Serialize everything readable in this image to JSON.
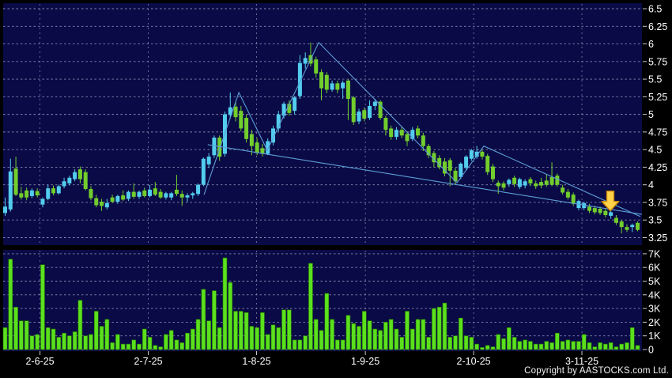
{
  "meta": {
    "copyright": "Copyright by AASTOCKS.com Ltd."
  },
  "colors": {
    "frame": "#000000",
    "panel_bg": "#0A0A46",
    "grid": "#9C9EC4",
    "axis_tick": "#C8C9DC",
    "text": "#FFFFFF",
    "up": "#53CDEE",
    "down": "#72CE2C",
    "volume": "#5BE01E",
    "volume_edge": "#267A00",
    "overlay_line": "#5C9FD6",
    "arrow_fill": "#FFD24A",
    "arrow_edge": "#C8860A"
  },
  "chart_data": {
    "type": "candlestick",
    "panels": [
      "price",
      "volume"
    ],
    "grid": "dashed",
    "legend": "none",
    "price_axis": {
      "side": "right",
      "min": 3.25,
      "max": 6.5,
      "step": 0.25,
      "ticks": [
        "6.5",
        "6.25",
        "6",
        "5.75",
        "5.5",
        "5.25",
        "5",
        "4.75",
        "4.5",
        "4.25",
        "4",
        "3.75",
        "3.5",
        "3.25"
      ]
    },
    "volume_axis": {
      "side": "right",
      "min": 0,
      "max": 7000,
      "ticks": [
        "7K",
        "6K",
        "5K",
        "4K",
        "3K",
        "2K",
        "1K",
        "0"
      ]
    },
    "x_axis": {
      "ticks": [
        {
          "label": "2-6-25",
          "i": 6.5
        },
        {
          "label": "2-7-25",
          "i": 26.7
        },
        {
          "label": "1-8-25",
          "i": 46.9
        },
        {
          "label": "1-9-25",
          "i": 67.2
        },
        {
          "label": "2-10-25",
          "i": 87.4
        },
        {
          "label": "3-11-25",
          "i": 107.6
        }
      ]
    },
    "candles_format": [
      "open",
      "high",
      "low",
      "close"
    ],
    "candles": [
      [
        3.6,
        3.82,
        3.56,
        3.69
      ],
      [
        3.65,
        4.37,
        3.62,
        4.19
      ],
      [
        4.23,
        4.4,
        3.84,
        3.86
      ],
      [
        3.88,
        3.97,
        3.79,
        3.82
      ],
      [
        3.92,
        3.96,
        3.78,
        3.82
      ],
      [
        3.84,
        3.95,
        3.81,
        3.92
      ],
      [
        3.91,
        3.95,
        3.82,
        3.85
      ],
      [
        3.72,
        3.82,
        3.68,
        3.8
      ],
      [
        3.8,
        4.0,
        3.78,
        3.95
      ],
      [
        3.95,
        3.99,
        3.85,
        3.88
      ],
      [
        3.88,
        4.0,
        3.86,
        3.98
      ],
      [
        3.98,
        4.1,
        3.95,
        4.05
      ],
      [
        4.02,
        4.13,
        3.99,
        4.1
      ],
      [
        4.08,
        4.22,
        4.05,
        4.18
      ],
      [
        4.22,
        4.26,
        4.02,
        4.08
      ],
      [
        4.18,
        4.22,
        3.92,
        3.94
      ],
      [
        3.94,
        3.98,
        3.78,
        3.81
      ],
      [
        3.81,
        3.86,
        3.68,
        3.71
      ],
      [
        3.76,
        3.8,
        3.63,
        3.7
      ],
      [
        3.68,
        3.8,
        3.65,
        3.74
      ],
      [
        3.82,
        3.86,
        3.74,
        3.76
      ],
      [
        3.76,
        3.86,
        3.73,
        3.84
      ],
      [
        3.85,
        3.92,
        3.77,
        3.79
      ],
      [
        3.8,
        3.92,
        3.77,
        3.9
      ],
      [
        3.9,
        4.02,
        3.8,
        3.83
      ],
      [
        3.83,
        3.92,
        3.8,
        3.9
      ],
      [
        3.92,
        3.96,
        3.82,
        3.84
      ],
      [
        3.84,
        4.0,
        3.82,
        3.93
      ],
      [
        3.95,
        4.04,
        3.84,
        3.86
      ],
      [
        3.9,
        3.94,
        3.8,
        3.82
      ],
      [
        3.82,
        3.9,
        3.79,
        3.88
      ],
      [
        3.82,
        3.9,
        3.78,
        3.88
      ],
      [
        3.93,
        4.14,
        3.84,
        3.87
      ],
      [
        3.87,
        3.92,
        3.7,
        3.82
      ],
      [
        3.82,
        3.88,
        3.76,
        3.85
      ],
      [
        3.85,
        3.9,
        3.8,
        3.88
      ],
      [
        3.87,
        4.02,
        3.84,
        4.0
      ],
      [
        4.0,
        4.39,
        3.98,
        4.37
      ],
      [
        4.29,
        4.45,
        4.24,
        4.4
      ],
      [
        4.42,
        4.7,
        4.38,
        4.67
      ],
      [
        4.67,
        4.7,
        4.34,
        4.4
      ],
      [
        4.44,
        5.04,
        4.4,
        5.0
      ],
      [
        4.99,
        5.31,
        4.94,
        5.1
      ],
      [
        5.11,
        5.18,
        4.9,
        4.96
      ],
      [
        5.05,
        5.12,
        4.76,
        4.8
      ],
      [
        4.95,
        5.0,
        4.6,
        4.65
      ],
      [
        4.72,
        4.78,
        4.42,
        4.55
      ],
      [
        4.6,
        4.66,
        4.42,
        4.45
      ],
      [
        4.52,
        4.58,
        4.4,
        4.44
      ],
      [
        4.44,
        4.66,
        4.42,
        4.62
      ],
      [
        4.6,
        4.84,
        4.56,
        4.8
      ],
      [
        4.8,
        5.05,
        4.76,
        5.0
      ],
      [
        4.98,
        5.18,
        4.94,
        5.15
      ],
      [
        5.15,
        5.2,
        4.98,
        5.02
      ],
      [
        5.05,
        5.26,
        5.0,
        5.24
      ],
      [
        5.26,
        5.84,
        5.22,
        5.73
      ],
      [
        5.72,
        5.88,
        5.65,
        5.8
      ],
      [
        5.84,
        6.02,
        5.68,
        5.72
      ],
      [
        5.78,
        5.82,
        5.52,
        5.58
      ],
      [
        5.6,
        5.64,
        5.2,
        5.37
      ],
      [
        5.56,
        5.6,
        5.3,
        5.35
      ],
      [
        5.35,
        5.48,
        5.32,
        5.44
      ],
      [
        5.44,
        5.48,
        5.3,
        5.35
      ],
      [
        5.37,
        5.48,
        5.22,
        5.45
      ],
      [
        5.48,
        5.5,
        4.92,
        5.22
      ],
      [
        5.24,
        5.26,
        4.85,
        4.89
      ],
      [
        4.9,
        5.08,
        4.86,
        5.04
      ],
      [
        5.06,
        5.1,
        4.9,
        4.94
      ],
      [
        4.95,
        5.2,
        4.92,
        5.12
      ],
      [
        5.12,
        5.22,
        5.06,
        5.18
      ],
      [
        5.18,
        5.2,
        4.92,
        4.95
      ],
      [
        4.95,
        4.98,
        4.7,
        4.78
      ],
      [
        4.8,
        4.84,
        4.64,
        4.68
      ],
      [
        4.68,
        4.82,
        4.64,
        4.78
      ],
      [
        4.78,
        4.82,
        4.66,
        4.7
      ],
      [
        4.72,
        4.76,
        4.55,
        4.62
      ],
      [
        4.65,
        4.82,
        4.62,
        4.78
      ],
      [
        4.8,
        4.84,
        4.66,
        4.7
      ],
      [
        4.7,
        4.74,
        4.48,
        4.55
      ],
      [
        4.55,
        4.58,
        4.38,
        4.42
      ],
      [
        4.45,
        4.48,
        4.25,
        4.32
      ],
      [
        4.38,
        4.42,
        4.22,
        4.25
      ],
      [
        4.33,
        4.38,
        4.12,
        4.16
      ],
      [
        4.35,
        4.38,
        3.98,
        4.2
      ],
      [
        4.2,
        4.24,
        4.0,
        4.05
      ],
      [
        4.11,
        4.32,
        4.08,
        4.3
      ],
      [
        4.24,
        4.42,
        4.2,
        4.4
      ],
      [
        4.37,
        4.51,
        4.34,
        4.49
      ],
      [
        4.4,
        4.55,
        4.37,
        4.47
      ],
      [
        4.47,
        4.5,
        4.36,
        4.4
      ],
      [
        4.41,
        4.44,
        4.14,
        4.18
      ],
      [
        4.26,
        4.3,
        4.04,
        4.08
      ],
      [
        4.03,
        4.06,
        3.87,
        3.98
      ],
      [
        4.02,
        4.05,
        3.92,
        3.96
      ],
      [
        4.01,
        4.09,
        3.97,
        4.07
      ],
      [
        4.1,
        4.13,
        3.97,
        4.01
      ],
      [
        3.97,
        4.1,
        3.94,
        4.08
      ],
      [
        3.99,
        4.08,
        3.95,
        4.05
      ],
      [
        4.08,
        4.11,
        3.98,
        4.02
      ],
      [
        4.02,
        4.06,
        3.94,
        3.98
      ],
      [
        4.04,
        4.1,
        3.95,
        3.99
      ],
      [
        4.06,
        4.15,
        3.97,
        4.0
      ],
      [
        4.11,
        4.32,
        3.98,
        4.0
      ],
      [
        4.13,
        4.16,
        3.97,
        4.0
      ],
      [
        3.96,
        4.0,
        3.86,
        3.89
      ],
      [
        3.9,
        3.94,
        3.79,
        3.82
      ],
      [
        3.86,
        3.89,
        3.7,
        3.73
      ],
      [
        3.67,
        3.79,
        3.64,
        3.77
      ],
      [
        3.67,
        3.76,
        3.64,
        3.74
      ],
      [
        3.69,
        3.73,
        3.6,
        3.63
      ],
      [
        3.67,
        3.7,
        3.58,
        3.61
      ],
      [
        3.66,
        3.69,
        3.57,
        3.6
      ],
      [
        3.63,
        3.66,
        3.54,
        3.57
      ],
      [
        3.56,
        3.63,
        3.52,
        3.61
      ],
      [
        3.53,
        3.57,
        3.43,
        3.46
      ],
      [
        3.48,
        3.5,
        3.31,
        3.4
      ],
      [
        3.4,
        3.44,
        3.33,
        3.36
      ],
      [
        3.4,
        3.45,
        3.33,
        3.43
      ],
      [
        3.46,
        3.48,
        3.34,
        3.36
      ]
    ],
    "volumes_k": [
      1.6,
      6.6,
      3.1,
      2.1,
      2.1,
      1.0,
      1.1,
      6.2,
      1.6,
      1.5,
      0.9,
      1.2,
      1.0,
      1.3,
      3.6,
      1.0,
      1.1,
      2.8,
      1.7,
      2.2,
      0.5,
      1.1,
      0.4,
      0.4,
      0.7,
      0.4,
      1.5,
      0.9,
      0.3,
      0.2,
      1.1,
      1.4,
      0.7,
      0.5,
      1.2,
      1.5,
      2.2,
      4.4,
      2.1,
      4.3,
      1.6,
      6.7,
      4.9,
      2.8,
      2.8,
      2.7,
      1.7,
      1.6,
      2.7,
      1.1,
      1.8,
      1.6,
      2.9,
      2.9,
      0.7,
      0.7,
      1.0,
      6.3,
      2.2,
      1.4,
      4.1,
      2.2,
      0.7,
      0.7,
      2.5,
      1.9,
      1.7,
      2.8,
      2.1,
      1.5,
      1.4,
      2.0,
      2.2,
      1.5,
      0.9,
      2.8,
      1.5,
      2.2,
      2.2,
      0.9,
      3.0,
      3.1,
      3.4,
      0.9,
      1.0,
      2.3,
      1.0,
      0.9,
      0.4,
      0.15,
      0.3,
      0.2,
      1.1,
      0.8,
      1.6,
      0.9,
      0.6,
      0.7,
      0.6,
      0.4,
      0.4,
      0.6,
      0.5,
      1.2,
      0.6,
      0.7,
      0.6,
      0.6,
      1.1,
      0.5,
      0.2,
      0.5,
      0.4,
      0.5,
      0.2,
      0.4,
      0.5,
      1.6,
      0.3
    ],
    "overlays": {
      "zigzag": [
        {
          "i": 37.1,
          "p": 3.86
        },
        {
          "i": 43.6,
          "p": 5.31
        },
        {
          "i": 48.9,
          "p": 4.49
        },
        {
          "i": 58.5,
          "p": 6.02
        },
        {
          "i": 84.3,
          "p": 4.03
        },
        {
          "i": 89.3,
          "p": 4.55
        },
        {
          "i": 118.5,
          "p": 3.55
        }
      ],
      "trendline": [
        {
          "i": 37.8,
          "p": 4.57
        },
        {
          "i": 118.8,
          "p": 3.58
        }
      ],
      "arrow_marker": {
        "direction": "down",
        "i": 112.9,
        "top_p": 3.91,
        "tip_p": 3.63
      }
    }
  }
}
